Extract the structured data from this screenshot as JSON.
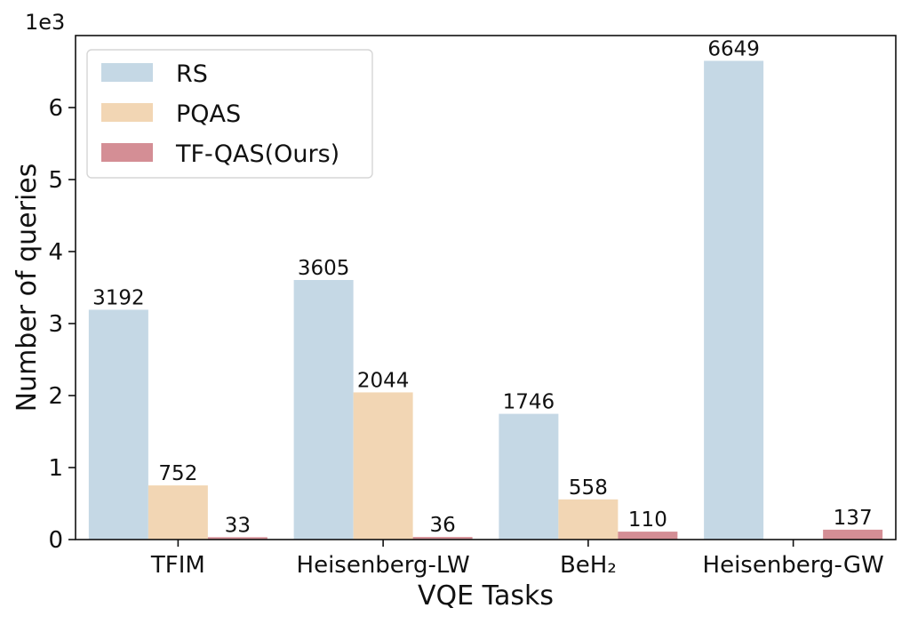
{
  "chart_data": {
    "type": "bar",
    "xlabel": "VQE Tasks",
    "ylabel": "Number of queries",
    "y_multiplier_label": "1e3",
    "categories": [
      "TFIM",
      "Heisenberg-LW",
      "BeH₂",
      "Heisenberg-GW"
    ],
    "series": [
      {
        "name": "RS",
        "color": "#c5d8e5",
        "values": [
          3192,
          3605,
          1746,
          6649
        ]
      },
      {
        "name": "PQAS",
        "color": "#f2d6b4",
        "values": [
          752,
          2044,
          558,
          null
        ]
      },
      {
        "name": "TF-QAS(Ours)",
        "color": "#d48e95",
        "values": [
          33,
          36,
          110,
          137
        ]
      }
    ],
    "ylim": [
      0,
      7000
    ],
    "yticks": [
      0,
      1000,
      2000,
      3000,
      4000,
      5000,
      6000
    ],
    "ytick_labels": [
      "0",
      "1",
      "2",
      "3",
      "4",
      "5",
      "6"
    ],
    "legend_position": "top-left",
    "grid": false
  }
}
